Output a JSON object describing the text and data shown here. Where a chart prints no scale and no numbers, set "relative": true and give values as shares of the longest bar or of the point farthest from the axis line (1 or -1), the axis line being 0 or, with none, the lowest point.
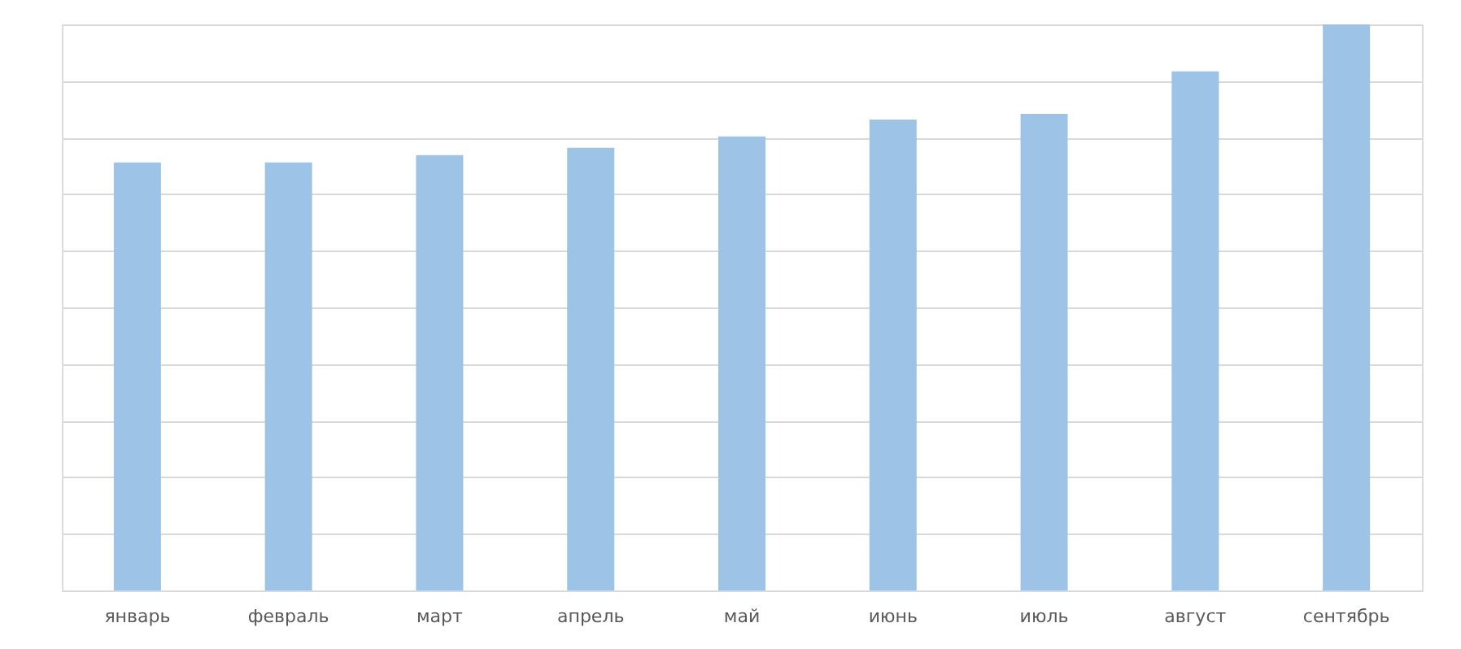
{
  "chart_data": {
    "type": "bar",
    "relative": true,
    "grid": "y",
    "categories": [
      "январь",
      "февраль",
      "март",
      "апрель",
      "май",
      "июнь",
      "июль",
      "август",
      "сентябрь"
    ],
    "values": [
      0.756,
      0.756,
      0.769,
      0.782,
      0.802,
      0.832,
      0.842,
      0.917,
      1
    ],
    "color": "#9dc3e6"
  }
}
